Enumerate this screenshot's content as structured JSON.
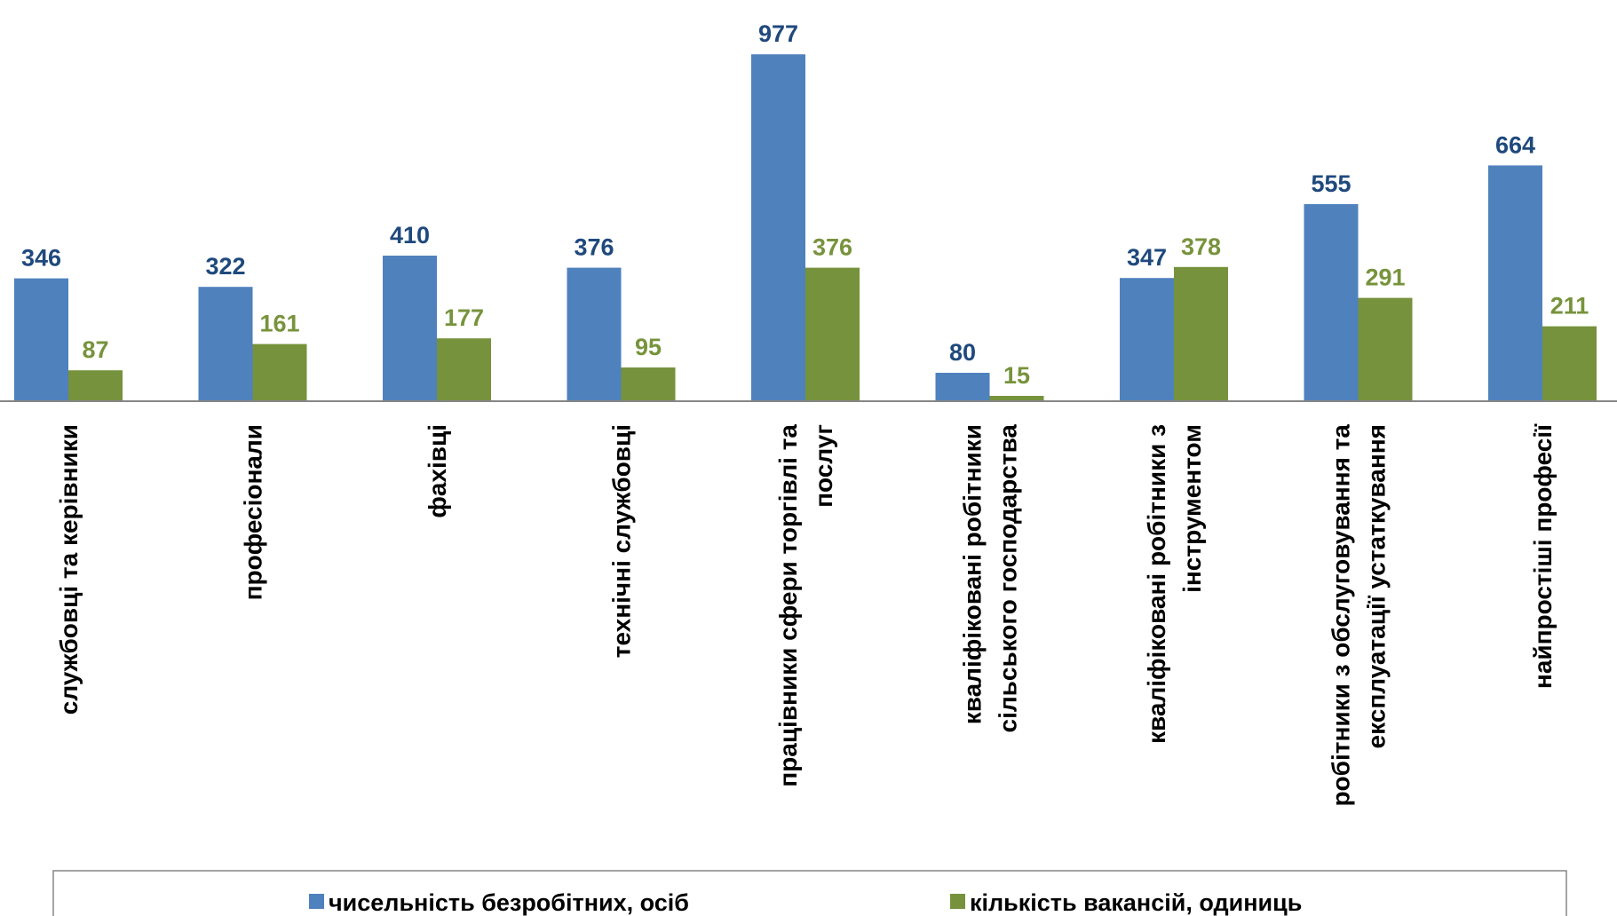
{
  "chart_data": {
    "type": "bar",
    "categories": [
      [
        "службовці та керівники"
      ],
      [
        "професіонали"
      ],
      [
        "фахівці"
      ],
      [
        "технічні службовці"
      ],
      [
        "працівники сфери торгівлі та",
        "послуг"
      ],
      [
        "кваліфіковані робітники",
        "сільського господарства"
      ],
      [
        "кваліфіковані робітники з",
        "інструментом"
      ],
      [
        "робітники з обслуговування та",
        "експлуатації устаткування"
      ],
      [
        "найпростіші професії"
      ]
    ],
    "series": [
      {
        "name": "чисельність безробітних,  осіб",
        "color": "#4F81BD",
        "label_color": "#1F497D",
        "values": [
          346,
          322,
          410,
          376,
          977,
          80,
          347,
          555,
          664
        ]
      },
      {
        "name": "кількість вакансій,  одиниць",
        "color": "#76923C",
        "label_color": "#77933C",
        "values": [
          87,
          161,
          177,
          95,
          376,
          15,
          378,
          291,
          211
        ]
      }
    ],
    "ylim": [
      0,
      1000
    ],
    "grid": false,
    "legend_position": "bottom"
  }
}
